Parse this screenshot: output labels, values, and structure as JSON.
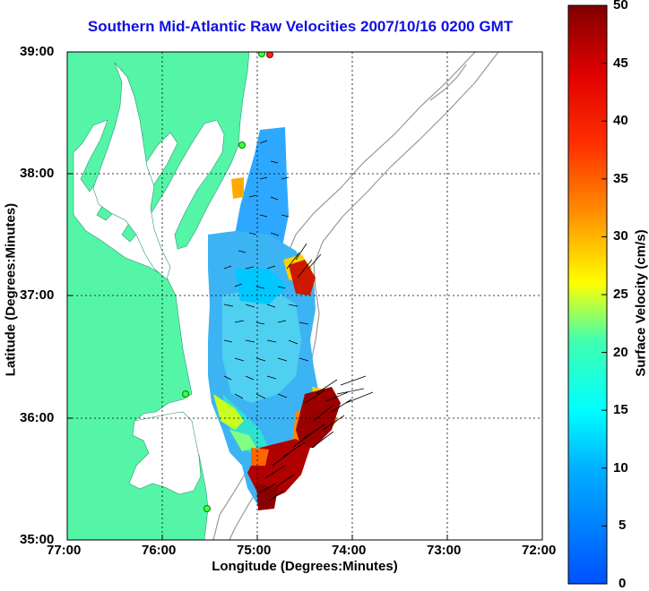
{
  "title": "Southern Mid-Atlantic Raw Velocities 2007/10/16 0200 GMT",
  "x_axis": {
    "label": "Longitude (Degrees:Minutes)",
    "ticks": [
      "77:00",
      "76:00",
      "75:00",
      "74:00",
      "73:00",
      "72:00"
    ]
  },
  "y_axis": {
    "label": "Latitude (Degrees:Minutes)",
    "ticks": [
      "39:00",
      "38:00",
      "37:00",
      "36:00",
      "35:00"
    ]
  },
  "colorbar": {
    "label": "Surface Velocity (cm/s)",
    "ticks": [
      "50",
      "45",
      "40",
      "35",
      "30",
      "25",
      "20",
      "15",
      "10",
      "5",
      "0"
    ],
    "min": 0,
    "max": 50
  },
  "map": {
    "lon_range": [
      -77,
      -72
    ],
    "lat_range": [
      35,
      39
    ],
    "grid": true,
    "land_color": "#55f5a8",
    "water_color": "#ffffff",
    "bathymetry_color": "#999999"
  }
}
